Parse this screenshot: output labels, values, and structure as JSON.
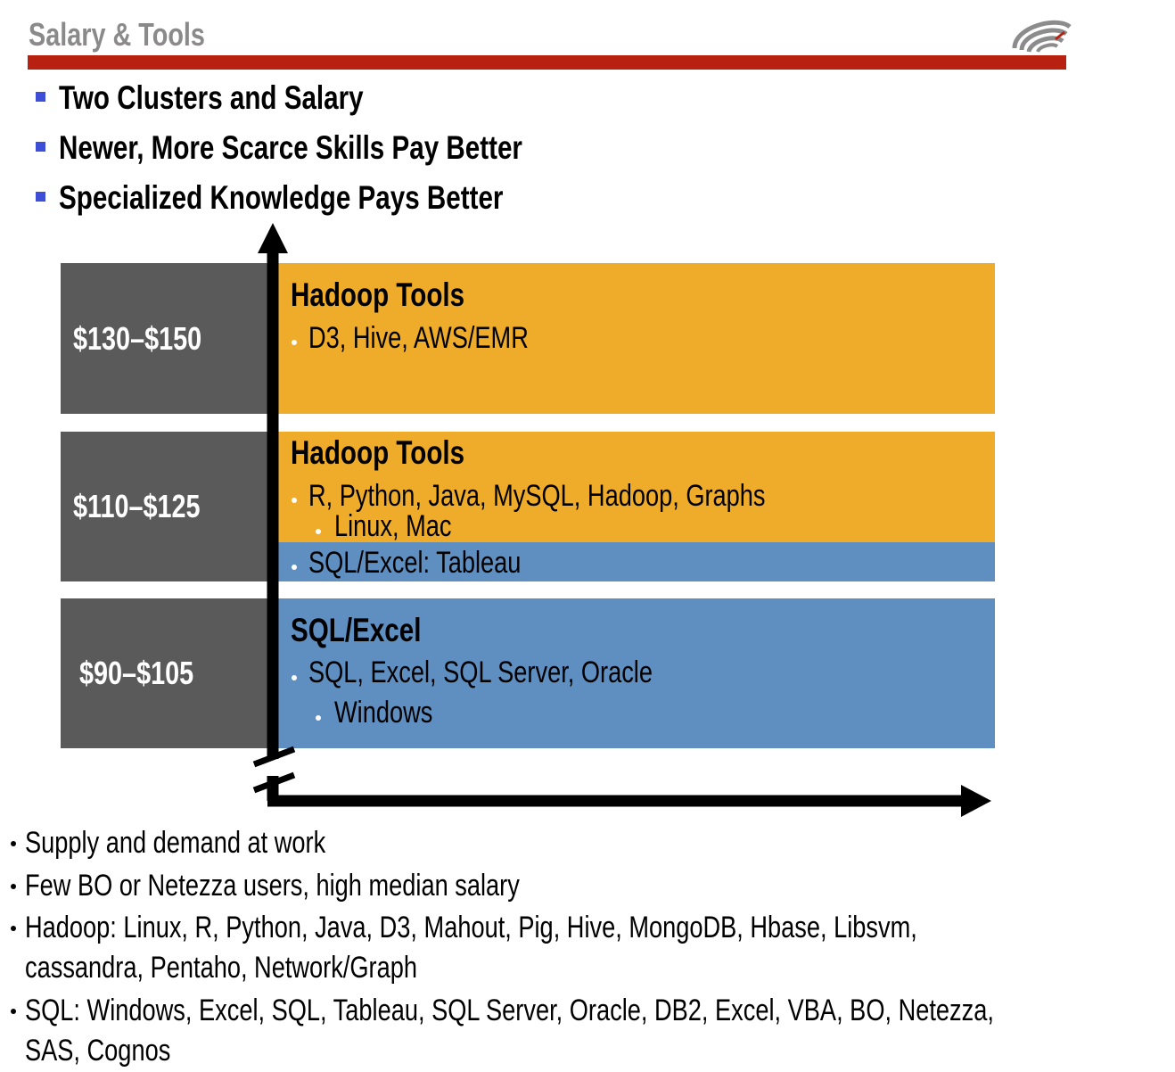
{
  "header": {
    "title": "Salary & Tools"
  },
  "top_bullets": [
    "Two Clusters and Salary",
    "Newer, More Scarce Skills Pay Better",
    "Specialized Knowledge Pays Better"
  ],
  "salary_bands": [
    {
      "range": "$130–$150"
    },
    {
      "range": "$110–$125"
    },
    {
      "range": "$90–$105"
    }
  ],
  "tool_bands": {
    "top": {
      "title": "Hadoop Tools",
      "items": [
        "D3, Hive, AWS/EMR"
      ]
    },
    "middle_hadoop": {
      "title": "Hadoop Tools",
      "items": [
        "R, Python, Java, MySQL, Hadoop, Graphs"
      ],
      "subitems": [
        "Linux, Mac"
      ]
    },
    "middle_sql": {
      "items": [
        "SQL/Excel: Tableau"
      ]
    },
    "bottom": {
      "title": "SQL/Excel",
      "items": [
        "SQL, Excel, SQL Server, Oracle"
      ],
      "subitems": [
        "Windows"
      ]
    }
  },
  "footer_bullets": [
    [
      "Supply and demand at work"
    ],
    [
      "Few BO or Netezza users, high median salary"
    ],
    [
      "Hadoop: Linux, R, Python, Java, D3, Mahout, Pig, Hive, MongoDB, Hbase, Libsvm,",
      "cassandra, Pentaho, Network/Graph"
    ],
    [
      "SQL: Windows, Excel, SQL, Tableau, SQL Server, Oracle, DB2, Excel, VBA, BO, Netezza,",
      "SAS, Cognos"
    ]
  ],
  "colors": {
    "title_rule": "#b8200f",
    "hadoop_band": "#efac2b",
    "sql_band": "#5f8ec1",
    "salary_box": "#5a5a5a",
    "bullet_square": "#3d4fd6"
  },
  "icons": {
    "logo": "swirl-logo-icon"
  }
}
